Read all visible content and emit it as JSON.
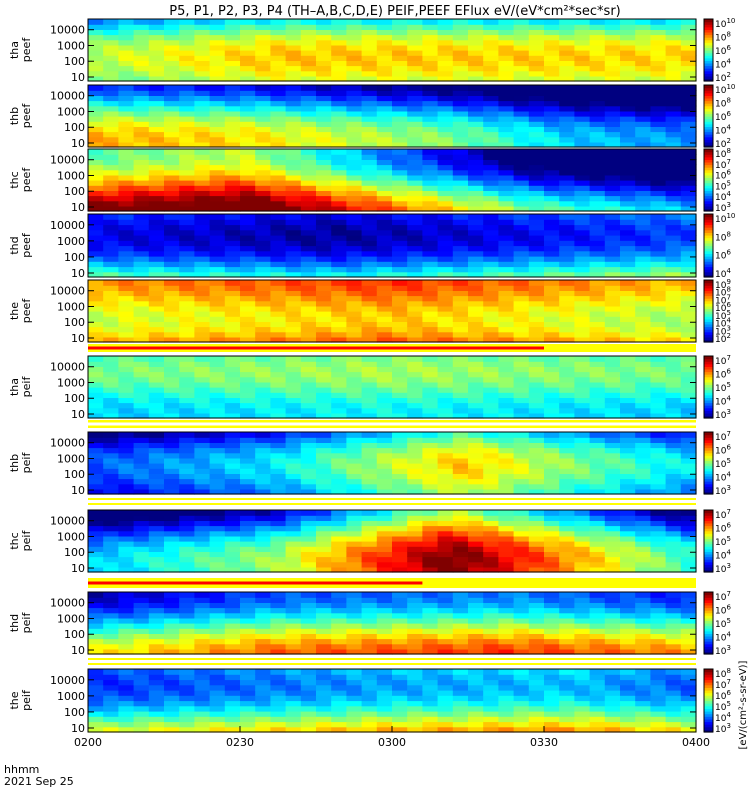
{
  "title": "P5, P1, P2, P3, P4 (TH–A,B,C,D,E) PEIF,PEEF EFlux eV/(eV*cm²*sec*sr)",
  "colorbar_label": "[eV/(cm²-s-sr-eV)]",
  "footer": {
    "x_axis_label": "hhmm",
    "date": "2021 Sep 25"
  },
  "chart_data": {
    "type": "heatmap",
    "x_ticks": [
      "0200",
      "0230",
      "0300",
      "0330",
      "0400"
    ],
    "y_ticks": [
      "10",
      "100",
      "1000",
      "10000"
    ],
    "y_scale": "log",
    "panels": [
      {
        "label": [
          "tha",
          "peef"
        ],
        "colorbar_exp": [
          2,
          4,
          6,
          8,
          10
        ],
        "profile": [
          [
            0,
            0.48
          ],
          [
            0.3,
            0.6
          ],
          [
            1,
            0.58
          ]
        ]
      },
      {
        "label": [
          "thb",
          "peef"
        ],
        "colorbar_exp": [
          2,
          4,
          6,
          8,
          10
        ],
        "profile": [
          [
            0,
            0.55
          ],
          [
            0.25,
            0.5
          ],
          [
            0.6,
            0.35
          ],
          [
            0.8,
            0.18
          ],
          [
            1,
            0.12
          ]
        ]
      },
      {
        "label": [
          "thc",
          "peef"
        ],
        "colorbar_exp": [
          3,
          4,
          5,
          6,
          7,
          8
        ],
        "profile": [
          [
            0,
            0.85
          ],
          [
            0.25,
            0.95
          ],
          [
            0.5,
            0.62
          ],
          [
            0.75,
            0.3
          ],
          [
            1,
            0.15
          ]
        ]
      },
      {
        "label": [
          "thd",
          "peef"
        ],
        "colorbar_exp": [
          4,
          6,
          8,
          10
        ],
        "profile": [
          [
            0,
            0.42
          ],
          [
            0.4,
            0.34
          ],
          [
            0.7,
            0.42
          ],
          [
            1,
            0.5
          ]
        ]
      },
      {
        "label": [
          "the",
          "peef"
        ],
        "colorbar_exp": [
          2,
          3,
          4,
          5,
          6,
          7,
          8,
          9
        ],
        "profile": [
          [
            0,
            0.82
          ],
          [
            0.5,
            0.92
          ],
          [
            1,
            0.78
          ]
        ]
      },
      {
        "label": [
          "tha",
          "peif"
        ],
        "colorbar_exp": [
          3,
          4,
          5,
          6,
          7
        ],
        "profile": [
          [
            0,
            0.5
          ],
          [
            0.5,
            0.55
          ],
          [
            1,
            0.5
          ]
        ]
      },
      {
        "label": [
          "thb",
          "peif"
        ],
        "colorbar_exp": [
          3,
          4,
          5,
          6,
          7
        ],
        "profile": [
          [
            0,
            0.15
          ],
          [
            0.3,
            0.3
          ],
          [
            0.62,
            0.62
          ],
          [
            0.8,
            0.45
          ],
          [
            1,
            0.3
          ]
        ]
      },
      {
        "label": [
          "thc",
          "peif"
        ],
        "colorbar_exp": [
          3,
          4,
          5,
          6,
          7
        ],
        "profile": [
          [
            0,
            0.2
          ],
          [
            0.3,
            0.4
          ],
          [
            0.6,
            0.9
          ],
          [
            0.8,
            0.6
          ],
          [
            1,
            0.3
          ]
        ]
      },
      {
        "label": [
          "thd",
          "peif"
        ],
        "colorbar_exp": [
          3,
          4,
          5,
          6,
          7
        ],
        "profile": [
          [
            0,
            0.45
          ],
          [
            0.3,
            0.6
          ],
          [
            0.7,
            0.65
          ],
          [
            1,
            0.55
          ]
        ]
      },
      {
        "label": [
          "the",
          "peif"
        ],
        "colorbar_exp": [
          3,
          4,
          5,
          6,
          7,
          8
        ],
        "profile": [
          [
            0,
            0.5
          ],
          [
            0.5,
            0.62
          ],
          [
            0.8,
            0.65
          ],
          [
            1,
            0.55
          ]
        ]
      }
    ]
  }
}
